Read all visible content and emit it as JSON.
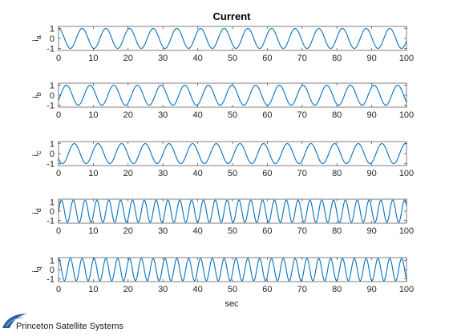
{
  "figure": {
    "title": "Current",
    "xlabel": "sec",
    "logo_text": "Princeton Satellite Systems"
  },
  "colors": {
    "line": "#0072BD",
    "axes": "#262626",
    "background": "#ffffff",
    "logo_blue": "#2a5e9c"
  },
  "chart_data": [
    {
      "type": "line",
      "title": "Current",
      "ylabel": "i_a",
      "ylabel_main": "i",
      "ylabel_sub": "a",
      "xlim": [
        0,
        100
      ],
      "ylim": [
        -1.2,
        1.2
      ],
      "xticks": [
        "0",
        "10",
        "20",
        "30",
        "40",
        "50",
        "60",
        "70",
        "80",
        "90",
        "100"
      ],
      "yticks": [
        "1",
        "0",
        "-1"
      ],
      "grid": false,
      "series": [
        {
          "function": "sin",
          "amplitude": 1,
          "period": 6.8,
          "phase_deg": 90,
          "x": [
            0,
            100
          ]
        }
      ]
    },
    {
      "type": "line",
      "ylabel": "i_b",
      "ylabel_main": "i",
      "ylabel_sub": "b",
      "xlim": [
        0,
        100
      ],
      "ylim": [
        -1.2,
        1.2
      ],
      "xticks": [
        "0",
        "10",
        "20",
        "30",
        "40",
        "50",
        "60",
        "70",
        "80",
        "90",
        "100"
      ],
      "yticks": [
        "1",
        "0",
        "-1"
      ],
      "grid": false,
      "series": [
        {
          "function": "sin",
          "amplitude": 1,
          "period": 6.8,
          "phase_deg": -30,
          "x": [
            0,
            100
          ]
        }
      ]
    },
    {
      "type": "line",
      "ylabel": "i_c",
      "ylabel_main": "i",
      "ylabel_sub": "c",
      "xlim": [
        0,
        100
      ],
      "ylim": [
        -1.2,
        1.2
      ],
      "xticks": [
        "0",
        "10",
        "20",
        "30",
        "40",
        "50",
        "60",
        "70",
        "80",
        "90",
        "100"
      ],
      "yticks": [
        "1",
        "0",
        "-1"
      ],
      "grid": false,
      "series": [
        {
          "function": "sin",
          "amplitude": 1,
          "period": 6.8,
          "phase_deg": 210,
          "x": [
            0,
            100
          ]
        }
      ]
    },
    {
      "type": "line",
      "ylabel": "i_d",
      "ylabel_main": "i",
      "ylabel_sub": "d",
      "xlim": [
        0,
        100
      ],
      "ylim": [
        -1.3,
        1.3
      ],
      "xticks": [
        "0",
        "10",
        "20",
        "30",
        "40",
        "50",
        "60",
        "70",
        "80",
        "90",
        "100"
      ],
      "yticks": [
        "1",
        "0",
        "-1"
      ],
      "grid": false,
      "series": [
        {
          "function": "sin",
          "amplitude": 1.2,
          "period": 3.4,
          "phase_deg": 0,
          "x": [
            0,
            100
          ]
        }
      ]
    },
    {
      "type": "line",
      "ylabel": "i_q",
      "ylabel_main": "i",
      "ylabel_sub": "q",
      "xlabel": "sec",
      "xlim": [
        0,
        100
      ],
      "ylim": [
        -1.3,
        1.3
      ],
      "xticks": [
        "0",
        "10",
        "20",
        "30",
        "40",
        "50",
        "60",
        "70",
        "80",
        "90",
        "100"
      ],
      "yticks": [
        "1",
        "0",
        "-1"
      ],
      "grid": false,
      "series": [
        {
          "function": "sin",
          "amplitude": 1.2,
          "period": 3.4,
          "phase_deg": 90,
          "x": [
            0,
            100
          ]
        }
      ]
    }
  ]
}
